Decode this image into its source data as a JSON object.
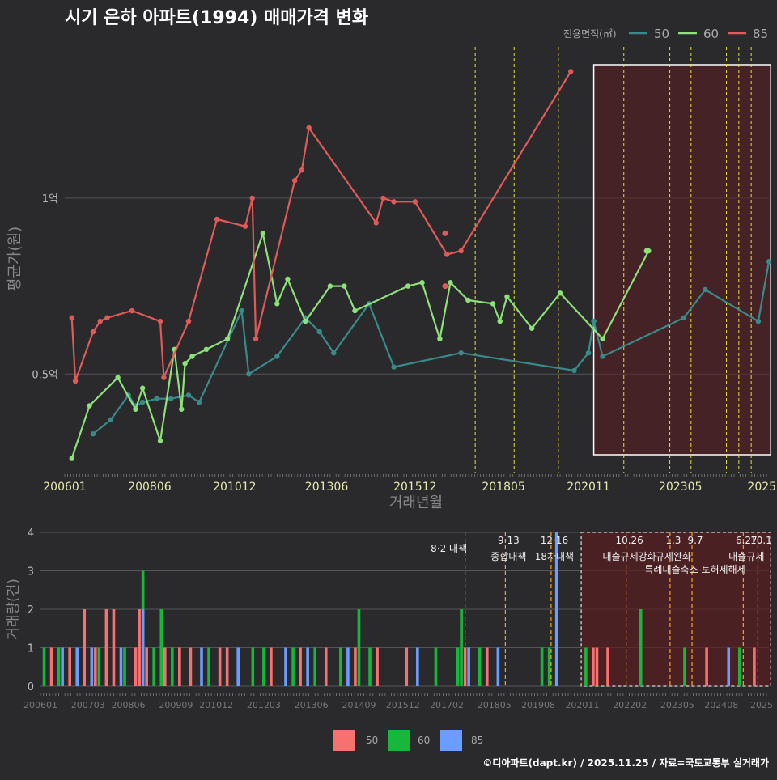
{
  "title": "시기 은하 아파트(1994) 매매가격 변화",
  "footer": "©디아파트(dapt.kr) / 2025.11.25 / 자료=국토교통부 실거래가",
  "colors": {
    "s50": "#3a8a8a",
    "s60": "#8ee07a",
    "s85": "#e05a5a",
    "b50": "#f87171",
    "b60": "#16b83c",
    "b85": "#6b9cff",
    "policy": "#e8e030",
    "policy2": "#f5a623"
  },
  "chart_data": [
    {
      "type": "line",
      "title": "시기 은하 아파트(1994) 매매가격 변화",
      "xlabel": "거래년월",
      "ylabel": "평균가(원)",
      "legend_title": "전용면적(㎡)",
      "legend_position": "top-right",
      "xlim": [
        2006.0,
        2025.9
      ],
      "ylim": [
        0.22,
        1.43
      ],
      "yticks": [
        {
          "v": 0.5,
          "label": "0.5억"
        },
        {
          "v": 1.0,
          "label": "1억"
        }
      ],
      "xticks": [
        {
          "v": 2006.0,
          "label": "200601"
        },
        {
          "v": 2008.4,
          "label": "200806"
        },
        {
          "v": 2010.8,
          "label": "201012"
        },
        {
          "v": 2013.4,
          "label": "201306"
        },
        {
          "v": 2015.9,
          "label": "201512"
        },
        {
          "v": 2018.4,
          "label": "201805"
        },
        {
          "v": 2020.8,
          "label": "202011"
        },
        {
          "v": 2023.4,
          "label": "202305"
        },
        {
          "v": 2025.7,
          "label": "2025"
        }
      ],
      "policy_lines": [
        2017.6,
        2018.7,
        2019.95,
        2021.8,
        2023.1,
        2023.7,
        2024.7,
        2025.05,
        2025.4
      ],
      "highlight_range": [
        2020.95,
        2025.95
      ],
      "series": [
        {
          "name": "50",
          "color": "#3a8a8a",
          "points": [
            [
              2006.8,
              0.33
            ],
            [
              2007.3,
              0.37
            ],
            [
              2007.8,
              0.44
            ],
            [
              2008.0,
              0.41
            ],
            [
              2008.2,
              0.42
            ],
            [
              2008.6,
              0.43
            ],
            [
              2009.0,
              0.43
            ],
            [
              2009.5,
              0.44
            ],
            [
              2009.8,
              0.42
            ],
            [
              2011.0,
              0.68
            ],
            [
              2011.2,
              0.5
            ],
            [
              2012.0,
              0.55
            ],
            [
              2012.8,
              0.66
            ],
            [
              2013.2,
              0.62
            ],
            [
              2013.6,
              0.56
            ],
            [
              2014.6,
              0.7
            ],
            [
              2015.3,
              0.52
            ],
            [
              2017.2,
              0.56
            ],
            [
              2020.4,
              0.51
            ],
            [
              2020.8,
              0.56
            ],
            [
              2020.95,
              0.65
            ],
            [
              2021.2,
              0.55
            ],
            [
              2023.5,
              0.66
            ],
            [
              2024.1,
              0.74
            ],
            [
              2025.6,
              0.65
            ],
            [
              2025.9,
              0.82
            ]
          ]
        },
        {
          "name": "60",
          "color": "#8ee07a",
          "points": [
            [
              2006.2,
              0.26
            ],
            [
              2006.7,
              0.41
            ],
            [
              2007.5,
              0.49
            ],
            [
              2008.0,
              0.4
            ],
            [
              2008.2,
              0.46
            ],
            [
              2008.7,
              0.31
            ],
            [
              2009.1,
              0.57
            ],
            [
              2009.3,
              0.4
            ],
            [
              2009.4,
              0.53
            ],
            [
              2009.6,
              0.55
            ],
            [
              2010.0,
              0.57
            ],
            [
              2010.6,
              0.6
            ],
            [
              2011.6,
              0.9
            ],
            [
              2012.0,
              0.7
            ],
            [
              2012.3,
              0.77
            ],
            [
              2012.8,
              0.65
            ],
            [
              2013.5,
              0.75
            ],
            [
              2013.9,
              0.75
            ],
            [
              2014.2,
              0.68
            ],
            [
              2015.7,
              0.75
            ],
            [
              2016.1,
              0.76
            ],
            [
              2016.6,
              0.6
            ],
            [
              2016.9,
              0.76
            ],
            [
              2017.4,
              0.71
            ],
            [
              2018.1,
              0.7
            ],
            [
              2018.3,
              0.65
            ],
            [
              2018.5,
              0.72
            ],
            [
              2019.2,
              0.63
            ],
            [
              2020.0,
              0.73
            ],
            [
              2021.2,
              0.6
            ],
            [
              2022.5,
              0.85
            ]
          ]
        },
        {
          "name": "85",
          "color": "#e05a5a",
          "points": [
            [
              2006.2,
              0.66
            ],
            [
              2006.3,
              0.48
            ],
            [
              2006.8,
              0.62
            ],
            [
              2007.0,
              0.65
            ],
            [
              2007.2,
              0.66
            ],
            [
              2007.9,
              0.68
            ],
            [
              2008.7,
              0.65
            ],
            [
              2008.8,
              0.49
            ],
            [
              2009.5,
              0.65
            ],
            [
              2010.3,
              0.94
            ],
            [
              2011.1,
              0.92
            ],
            [
              2011.3,
              1.0
            ],
            [
              2011.4,
              0.6
            ],
            [
              2012.5,
              1.05
            ],
            [
              2012.7,
              1.08
            ],
            [
              2012.9,
              1.2
            ],
            [
              2014.8,
              0.93
            ],
            [
              2015.0,
              1.0
            ],
            [
              2015.3,
              0.99
            ],
            [
              2015.9,
              0.99
            ],
            [
              2016.8,
              0.84
            ],
            [
              2017.2,
              0.85
            ],
            [
              2020.3,
              1.36
            ]
          ]
        }
      ],
      "extra_points": [
        {
          "series": "85",
          "x": 2016.75,
          "y": 0.9
        },
        {
          "series": "85",
          "x": 2016.75,
          "y": 0.75
        },
        {
          "series": "60",
          "x": 2022.45,
          "y": 0.85
        }
      ]
    },
    {
      "type": "bar",
      "ylabel": "거래량(건)",
      "ylim": [
        0,
        4
      ],
      "yticks": [
        0,
        1,
        2,
        3,
        4
      ],
      "xticks": [
        {
          "v": 2006.0,
          "label": "200601"
        },
        {
          "v": 2007.3,
          "label": "200703"
        },
        {
          "v": 2008.4,
          "label": "200806"
        },
        {
          "v": 2009.7,
          "label": "200909"
        },
        {
          "v": 2010.8,
          "label": "201012"
        },
        {
          "v": 2012.1,
          "label": "201203"
        },
        {
          "v": 2013.4,
          "label": "201306"
        },
        {
          "v": 2014.7,
          "label": "201409"
        },
        {
          "v": 2015.9,
          "label": "201512"
        },
        {
          "v": 2017.1,
          "label": "201702"
        },
        {
          "v": 2018.4,
          "label": "201805"
        },
        {
          "v": 2019.6,
          "label": "201908"
        },
        {
          "v": 2020.8,
          "label": "202011"
        },
        {
          "v": 2022.1,
          "label": "202202"
        },
        {
          "v": 2023.4,
          "label": "202305"
        },
        {
          "v": 2024.6,
          "label": "202408"
        },
        {
          "v": 2025.7,
          "label": "2025"
        }
      ],
      "legend": [
        "50",
        "60",
        "85"
      ],
      "series": [
        {
          "name": "50",
          "bars": [
            [
              2006.3,
              1
            ],
            [
              2006.8,
              1
            ],
            [
              2007.2,
              2
            ],
            [
              2007.5,
              1
            ],
            [
              2007.8,
              2
            ],
            [
              2008.0,
              2
            ],
            [
              2008.6,
              1
            ],
            [
              2008.7,
              2
            ],
            [
              2008.9,
              1
            ],
            [
              2009.4,
              1
            ],
            [
              2009.8,
              1
            ],
            [
              2010.1,
              1
            ],
            [
              2010.9,
              1
            ],
            [
              2011.1,
              1
            ],
            [
              2012.3,
              1
            ],
            [
              2013.1,
              1
            ],
            [
              2013.8,
              1
            ],
            [
              2014.6,
              1
            ],
            [
              2015.2,
              1
            ],
            [
              2016.0,
              1
            ],
            [
              2017.6,
              1
            ],
            [
              2018.2,
              1
            ],
            [
              2021.1,
              1
            ],
            [
              2021.2,
              1
            ],
            [
              2021.5,
              1
            ],
            [
              2024.2,
              1
            ],
            [
              2025.5,
              1
            ]
          ]
        },
        {
          "name": "60",
          "bars": [
            [
              2006.1,
              1
            ],
            [
              2006.5,
              1
            ],
            [
              2007.6,
              1
            ],
            [
              2008.3,
              1
            ],
            [
              2008.8,
              3
            ],
            [
              2009.1,
              1
            ],
            [
              2009.3,
              2
            ],
            [
              2009.6,
              1
            ],
            [
              2010.6,
              1
            ],
            [
              2011.8,
              1
            ],
            [
              2012.1,
              1
            ],
            [
              2012.9,
              1
            ],
            [
              2013.5,
              1
            ],
            [
              2014.2,
              1
            ],
            [
              2014.7,
              2
            ],
            [
              2015.0,
              1
            ],
            [
              2016.8,
              1
            ],
            [
              2017.4,
              1
            ],
            [
              2017.5,
              2
            ],
            [
              2018.0,
              1
            ],
            [
              2019.7,
              1
            ],
            [
              2019.9,
              1
            ],
            [
              2020.9,
              1
            ],
            [
              2022.4,
              2
            ],
            [
              2023.6,
              1
            ],
            [
              2025.1,
              1
            ]
          ]
        },
        {
          "name": "85",
          "bars": [
            [
              2006.6,
              1
            ],
            [
              2007.0,
              1
            ],
            [
              2007.4,
              1
            ],
            [
              2008.2,
              1
            ],
            [
              2008.8,
              2
            ],
            [
              2010.4,
              1
            ],
            [
              2011.4,
              1
            ],
            [
              2012.7,
              1
            ],
            [
              2013.3,
              1
            ],
            [
              2014.4,
              1
            ],
            [
              2016.3,
              1
            ],
            [
              2017.7,
              1
            ],
            [
              2018.5,
              1
            ],
            [
              2020.1,
              4
            ],
            [
              2024.8,
              1
            ]
          ]
        }
      ],
      "policies": [
        {
          "x": 2017.6,
          "label1": "8·2 대책",
          "label2": ""
        },
        {
          "x": 2018.7,
          "label1": "9·13",
          "label2": "종합대책"
        },
        {
          "x": 2019.95,
          "label1": "12·16",
          "label2": "18차대책"
        },
        {
          "x": 2022.0,
          "label1": "10.26",
          "label2": "대출규제강화"
        },
        {
          "x": 2023.2,
          "label1": "1.3",
          "label2": "규제완화"
        },
        {
          "x": 2023.8,
          "label1": "9.7",
          "label2": "특례대출축소 토허제해제"
        },
        {
          "x": 2025.2,
          "label1": "6.27",
          "label2": "대출규제"
        },
        {
          "x": 2025.6,
          "label1": "10.1",
          "label2": ""
        }
      ]
    }
  ]
}
